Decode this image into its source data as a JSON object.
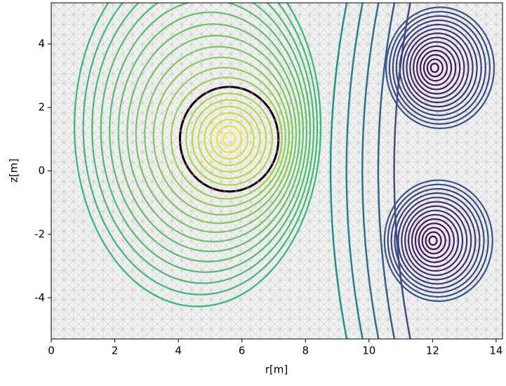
{
  "chart_data": {
    "type": "contour",
    "xlabel": "r[m]",
    "ylabel": "z[m]",
    "xlim": [
      0,
      14.2
    ],
    "ylim": [
      -5.3,
      5.3
    ],
    "xticks": [
      0,
      2,
      4,
      6,
      8,
      10,
      12,
      14
    ],
    "yticks": [
      -4,
      -2,
      0,
      2,
      4
    ],
    "plasma": {
      "r": 5.6,
      "z": 1.0
    },
    "boundary": {
      "rlim": [
        4.05,
        7.15
      ],
      "zlim": [
        -0.65,
        2.65
      ]
    },
    "coils": [
      {
        "r": 12.05,
        "z": 3.25
      },
      {
        "r": 12.0,
        "z": -2.2
      }
    ],
    "field_lines_r": [
      8.9,
      9.4,
      9.9,
      10.4,
      10.9
    ]
  }
}
